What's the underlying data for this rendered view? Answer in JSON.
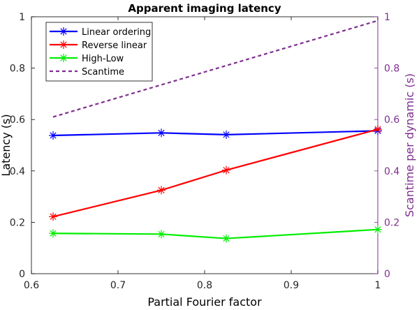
{
  "chart_data": {
    "type": "line",
    "title": "Apparent imaging latency",
    "xlabel": "Partial Fourier factor",
    "ylabel": "Latency (s)",
    "y2label": "Scantime per dynamic (s)",
    "xlim": [
      0.6,
      1.0
    ],
    "ylim": [
      0,
      1
    ],
    "y2lim": [
      0,
      1
    ],
    "grid": false,
    "legend_position": "top-left",
    "x_ticks": [
      0.6,
      0.7,
      0.8,
      0.9,
      1.0
    ],
    "x_tick_labels": [
      "0.6",
      "0.7",
      "0.8",
      "0.9",
      "1"
    ],
    "y_ticks": [
      0,
      0.2,
      0.4,
      0.6,
      0.8,
      1.0
    ],
    "y_tick_labels": [
      "0",
      "0.2",
      "0.4",
      "0.6",
      "0.8",
      "1"
    ],
    "y2_ticks": [
      0,
      0.2,
      0.4,
      0.6,
      0.8,
      1.0
    ],
    "y2_tick_labels": [
      "0",
      "0.2",
      "0.4",
      "0.6",
      "0.8",
      "1"
    ],
    "x": [
      0.625,
      0.75,
      0.825,
      1.0
    ],
    "series": [
      {
        "name": "Linear ordering",
        "values": [
          0.538,
          0.548,
          0.541,
          0.556
        ],
        "color": "#0000ff",
        "axis": "left",
        "marker": "asterisk",
        "dash": "solid"
      },
      {
        "name": "Reverse linear",
        "values": [
          0.222,
          0.325,
          0.403,
          0.562
        ],
        "color": "#ff0000",
        "axis": "left",
        "marker": "asterisk",
        "dash": "solid"
      },
      {
        "name": "High-Low",
        "values": [
          0.157,
          0.154,
          0.137,
          0.172
        ],
        "color": "#00ee00",
        "axis": "left",
        "marker": "asterisk",
        "dash": "solid"
      },
      {
        "name": "Scantime",
        "x": [
          0.625,
          1.0
        ],
        "values": [
          0.61,
          0.985
        ],
        "color": "#7e2f8e",
        "axis": "right",
        "marker": "none",
        "dash": "dashed"
      }
    ]
  }
}
